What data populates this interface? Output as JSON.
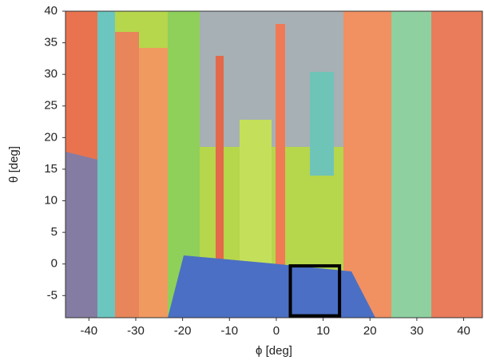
{
  "chart_data": {
    "type": "image",
    "xlabel": "ϕ [deg]",
    "ylabel": "θ [deg]",
    "xlim": [
      -45,
      44
    ],
    "ylim": [
      -8.5,
      40
    ],
    "xticks": [
      -40,
      -30,
      -20,
      -10,
      0,
      10,
      20,
      30,
      40
    ],
    "yticks": [
      -5,
      0,
      5,
      10,
      15,
      20,
      25,
      30,
      35,
      40
    ],
    "highlight": {
      "xlim": [
        3,
        13.5
      ],
      "ylim": [
        -8.2,
        -0.3
      ],
      "color": "#000000"
    }
  }
}
